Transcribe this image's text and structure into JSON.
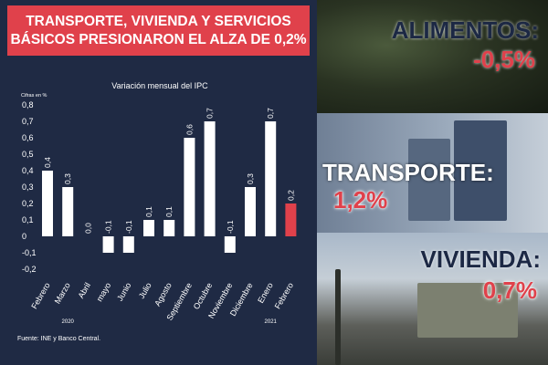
{
  "headline": "TRANSPORTE, VIVIENDA Y SERVICIOS BÁSICOS PRESIONARON EL ALZA DE 0,2%",
  "source": "Fuente: INE y Banco Central.",
  "chart_data": {
    "type": "bar",
    "title": "Variación mensual del IPC",
    "ylabel": "Cifras en %",
    "ylim": [
      -0.2,
      0.8
    ],
    "yticks": [
      "0,8",
      "0,7",
      "0,6",
      "0,5",
      "0,4",
      "0,3",
      "0,2",
      "0,1",
      "0",
      "-0,1",
      "-0,2"
    ],
    "categories": [
      "Febrero",
      "Marzo",
      "Abril",
      "mayo",
      "Junio",
      "Julio",
      "Agosto",
      "Septiembre",
      "Octubre",
      "Noviembre",
      "Diciembre",
      "Enero",
      "Febrero"
    ],
    "values": [
      0.4,
      0.3,
      0.0,
      -0.1,
      -0.1,
      0.1,
      0.1,
      0.6,
      0.7,
      -0.1,
      0.3,
      0.7,
      0.2
    ],
    "value_labels": [
      "0,4",
      "0,3",
      "0,0",
      "-0,1",
      "-0,1",
      "0,1",
      "0,1",
      "0,6",
      "0,7",
      "-0,1",
      "0,3",
      "0,7",
      "0,2"
    ],
    "years": [
      {
        "label": "2020",
        "under": 1
      },
      {
        "label": "2021",
        "under": 11
      }
    ],
    "bar_color": "#ffffff",
    "highlight_color": "#e0414b",
    "highlight_index": 12,
    "grid": false
  },
  "panels": [
    {
      "label": "ALIMENTOS:",
      "value": "-0,5%"
    },
    {
      "label": "TRANSPORTE:",
      "value": "1,2%"
    },
    {
      "label": "VIVIENDA:",
      "value": "0,7%"
    }
  ],
  "colors": {
    "navy": "#1f2a44",
    "red": "#e0414b",
    "white": "#ffffff"
  }
}
